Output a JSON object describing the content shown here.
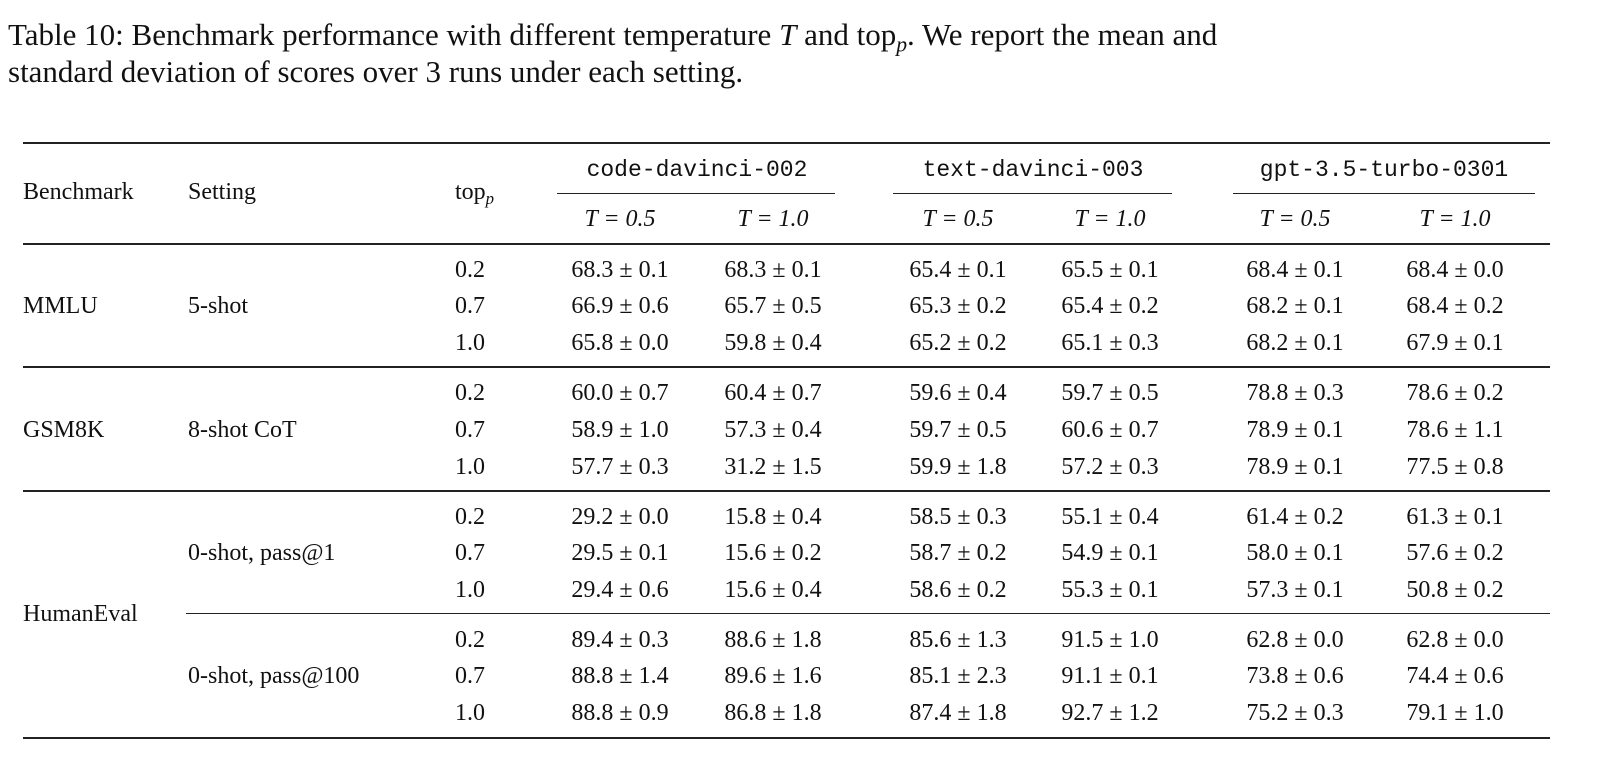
{
  "caption": {
    "line1_pre": "Table 10: Benchmark performance with different temperature ",
    "line1_T": "T",
    "line1_mid": " and top",
    "line1_sub": "p",
    "line1_post": ". We report the mean and",
    "line2": "standard deviation of scores over 3 runs under each setting."
  },
  "header": {
    "benchmark": "Benchmark",
    "setting": "Setting",
    "topp": "top",
    "topp_sub": "p",
    "models": [
      "code-davinci-002",
      "text-davinci-003",
      "gpt-3.5-turbo-0301"
    ],
    "temps": [
      "T = 0.5",
      "T = 1.0",
      "T = 0.5",
      "T = 1.0",
      "T = 0.5",
      "T = 1.0"
    ]
  },
  "groups": [
    {
      "benchmark": "MMLU",
      "setting": "5-shot",
      "rows": [
        {
          "topp": "0.2",
          "values": [
            "68.3 ± 0.1",
            "68.3 ± 0.1",
            "65.4 ± 0.1",
            "65.5 ± 0.1",
            "68.4 ± 0.1",
            "68.4 ± 0.0"
          ]
        },
        {
          "topp": "0.7",
          "values": [
            "66.9 ± 0.6",
            "65.7 ± 0.5",
            "65.3 ± 0.2",
            "65.4 ± 0.2",
            "68.2 ± 0.1",
            "68.4 ± 0.2"
          ]
        },
        {
          "topp": "1.0",
          "values": [
            "65.8 ± 0.0",
            "59.8 ± 0.4",
            "65.2 ± 0.2",
            "65.1 ± 0.3",
            "68.2 ± 0.1",
            "67.9 ± 0.1"
          ]
        }
      ]
    },
    {
      "benchmark": "GSM8K",
      "setting": "8-shot CoT",
      "rows": [
        {
          "topp": "0.2",
          "values": [
            "60.0 ± 0.7",
            "60.4 ± 0.7",
            "59.6 ± 0.4",
            "59.7 ± 0.5",
            "78.8 ± 0.3",
            "78.6 ± 0.2"
          ]
        },
        {
          "topp": "0.7",
          "values": [
            "58.9 ± 1.0",
            "57.3 ± 0.4",
            "59.7 ± 0.5",
            "60.6 ± 0.7",
            "78.9 ± 0.1",
            "78.6 ± 1.1"
          ]
        },
        {
          "topp": "1.0",
          "values": [
            "57.7 ± 0.3",
            "31.2 ± 1.5",
            "59.9 ± 1.8",
            "57.2 ± 0.3",
            "78.9 ± 0.1",
            "77.5 ± 0.8"
          ]
        }
      ]
    },
    {
      "benchmark": "HumanEval",
      "setting": "0-shot, pass@1",
      "rows": [
        {
          "topp": "0.2",
          "values": [
            "29.2 ± 0.0",
            "15.8 ± 0.4",
            "58.5 ± 0.3",
            "55.1 ± 0.4",
            "61.4 ± 0.2",
            "61.3 ± 0.1"
          ]
        },
        {
          "topp": "0.7",
          "values": [
            "29.5 ± 0.1",
            "15.6 ± 0.2",
            "58.7 ± 0.2",
            "54.9 ± 0.1",
            "58.0 ± 0.1",
            "57.6 ± 0.2"
          ]
        },
        {
          "topp": "1.0",
          "values": [
            "29.4 ± 0.6",
            "15.6 ± 0.4",
            "58.6 ± 0.2",
            "55.3 ± 0.1",
            "57.3 ± 0.1",
            "50.8 ± 0.2"
          ]
        }
      ]
    },
    {
      "benchmark": "",
      "setting": "0-shot, pass@100",
      "rows": [
        {
          "topp": "0.2",
          "values": [
            "89.4 ± 0.3",
            "88.6 ± 1.8",
            "85.6 ± 1.3",
            "91.5 ± 1.0",
            "62.8 ± 0.0",
            "62.8 ± 0.0"
          ]
        },
        {
          "topp": "0.7",
          "values": [
            "88.8 ± 1.4",
            "89.6 ± 1.6",
            "85.1 ± 2.3",
            "91.1 ± 0.1",
            "73.8 ± 0.6",
            "74.4 ± 0.6"
          ]
        },
        {
          "topp": "1.0",
          "values": [
            "88.8 ± 0.9",
            "86.8 ± 1.8",
            "87.4 ± 1.8",
            "92.7 ± 1.2",
            "75.2 ± 0.3",
            "79.1 ± 1.0"
          ]
        }
      ]
    }
  ]
}
